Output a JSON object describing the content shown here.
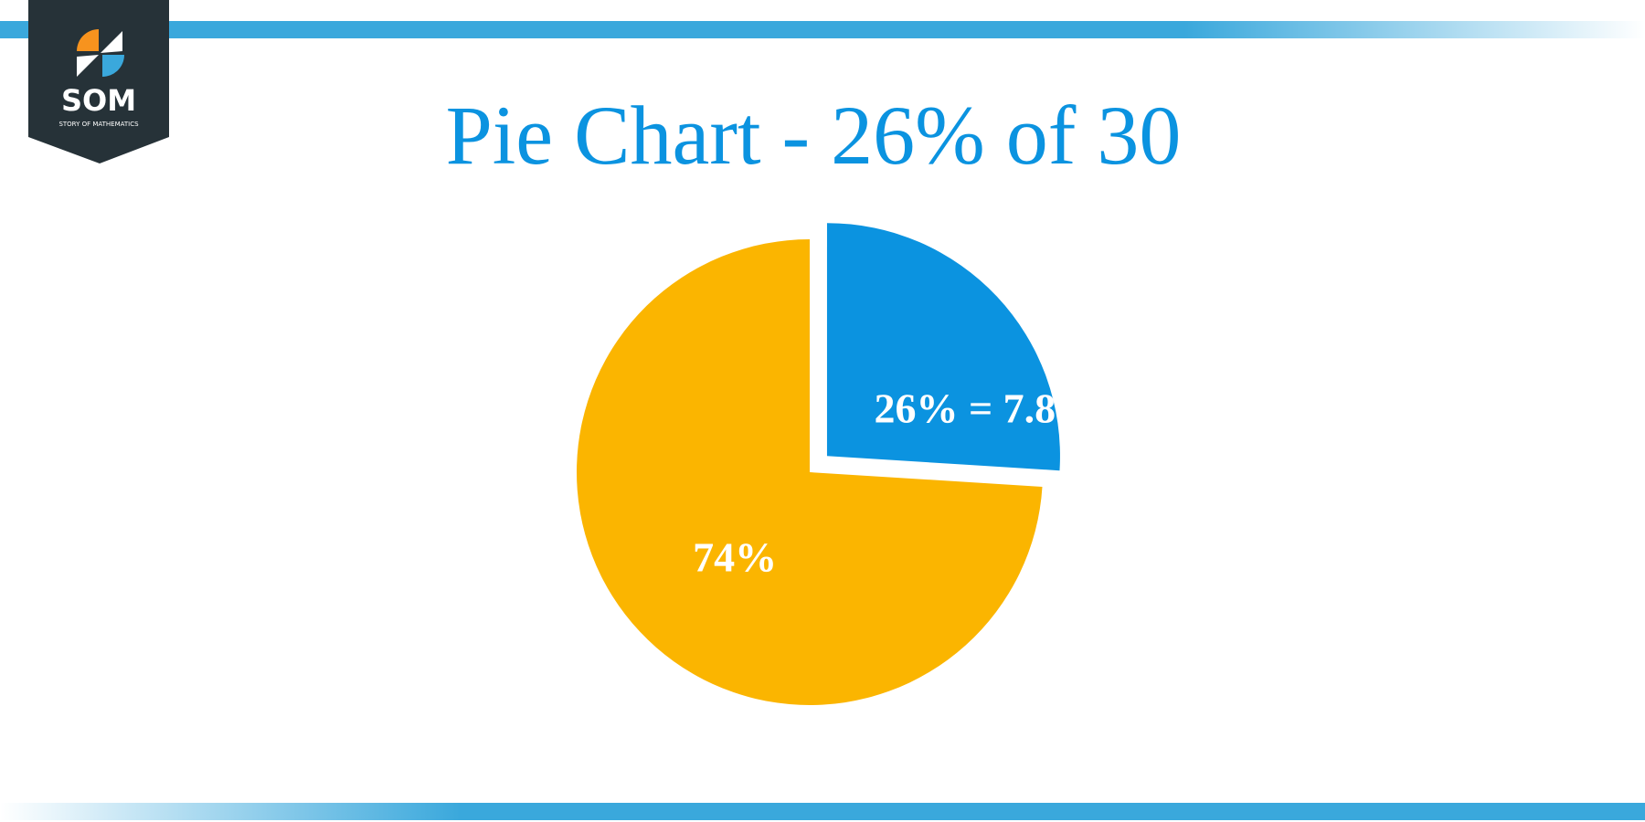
{
  "logo": {
    "text": "SOM",
    "subtext": "STORY OF MATHEMATICS"
  },
  "chart_data": {
    "type": "pie",
    "title": "Pie Chart - 26% of 30",
    "values": [
      26,
      74
    ],
    "value_labels": [
      "26% = 7.8",
      "74%"
    ],
    "colors": [
      "#0b93e0",
      "#fbb500"
    ],
    "exploded": [
      true,
      false
    ]
  }
}
